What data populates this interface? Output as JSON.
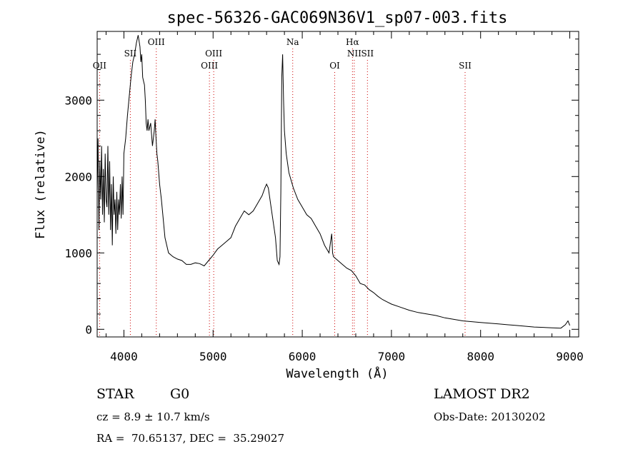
{
  "chart_data": {
    "type": "line",
    "title": "spec-56326-GAC069N36V1_sp07-003.fits",
    "xlabel": "Wavelength (Å)",
    "ylabel": "Flux (relative)",
    "xlim": [
      3700,
      9100
    ],
    "ylim": [
      -100,
      3900
    ],
    "xticks": [
      4000,
      5000,
      6000,
      7000,
      8000,
      9000
    ],
    "yticks": [
      0,
      1000,
      2000,
      3000
    ],
    "series": [
      {
        "x": [
          3700,
          3710,
          3720,
          3730,
          3740,
          3750,
          3760,
          3770,
          3780,
          3790,
          3800,
          3810,
          3820,
          3830,
          3840,
          3850,
          3860,
          3870,
          3880,
          3890,
          3900,
          3910,
          3920,
          3930,
          3940,
          3950,
          3960,
          3970,
          3980,
          3990,
          4000,
          4020,
          4040,
          4060,
          4080,
          4100,
          4120,
          4140,
          4160,
          4180,
          4190,
          4200,
          4210,
          4220,
          4230,
          4240,
          4250,
          4260,
          4270,
          4280,
          4300,
          4320,
          4340,
          4350,
          4360,
          4370,
          4380,
          4400,
          4420,
          4440,
          4460,
          4480,
          4500,
          4550,
          4600,
          4650,
          4700,
          4750,
          4800,
          4850,
          4900,
          4950,
          5000,
          5050,
          5100,
          5150,
          5200,
          5250,
          5300,
          5350,
          5400,
          5450,
          5500,
          5550,
          5580,
          5600,
          5620,
          5650,
          5700,
          5720,
          5740,
          5750,
          5760,
          5770,
          5780,
          5790,
          5800,
          5820,
          5850,
          5900,
          5950,
          6000,
          6050,
          6100,
          6150,
          6200,
          6250,
          6300,
          6330,
          6340,
          6350,
          6400,
          6450,
          6500,
          6550,
          6600,
          6650,
          6700,
          6750,
          6800,
          6850,
          6900,
          6950,
          7000,
          7100,
          7200,
          7300,
          7400,
          7500,
          7600,
          7700,
          7800,
          7900,
          8000,
          8100,
          8200,
          8300,
          8400,
          8500,
          8600,
          8700,
          8800,
          8900,
          8950,
          8980,
          9000
        ],
        "y": [
          1800,
          2500,
          1300,
          2200,
          1700,
          2400,
          1500,
          2100,
          1400,
          2300,
          1700,
          1600,
          2400,
          1500,
          2200,
          1300,
          1900,
          1100,
          2000,
          1500,
          1700,
          1250,
          1800,
          1300,
          1700,
          1500,
          1900,
          1450,
          2000,
          1500,
          2300,
          2500,
          2800,
          3050,
          3300,
          3500,
          3600,
          3750,
          3850,
          3700,
          3500,
          3600,
          3300,
          3250,
          3200,
          3000,
          2700,
          2600,
          2750,
          2600,
          2700,
          2400,
          2600,
          2750,
          2500,
          2300,
          2200,
          1900,
          1700,
          1450,
          1200,
          1100,
          1000,
          950,
          920,
          900,
          850,
          850,
          870,
          860,
          830,
          900,
          970,
          1050,
          1100,
          1150,
          1200,
          1350,
          1450,
          1550,
          1500,
          1550,
          1650,
          1750,
          1850,
          1900,
          1850,
          1600,
          1200,
          900,
          850,
          950,
          1800,
          3300,
          3600,
          3000,
          2600,
          2300,
          2050,
          1850,
          1700,
          1600,
          1500,
          1450,
          1350,
          1250,
          1100,
          1000,
          1250,
          1000,
          950,
          900,
          850,
          800,
          770,
          700,
          600,
          580,
          520,
          480,
          430,
          390,
          360,
          330,
          290,
          250,
          220,
          200,
          180,
          150,
          130,
          110,
          100,
          90,
          80,
          70,
          60,
          50,
          40,
          30,
          25,
          20,
          15,
          60,
          110,
          50
        ]
      }
    ],
    "line_markers": [
      {
        "label": "OII",
        "x": 3727,
        "row": 3
      },
      {
        "label": "SII",
        "x": 4072,
        "row": 2
      },
      {
        "label": "OIII",
        "x": 4363,
        "row": 1
      },
      {
        "label": "OIII",
        "x": 4959,
        "row": 3
      },
      {
        "label": "OIII",
        "x": 5007,
        "row": 2
      },
      {
        "label": "Na",
        "x": 5893,
        "row": 1
      },
      {
        "label": "OI",
        "x": 6364,
        "row": 3
      },
      {
        "label": "Hα",
        "x": 6563,
        "row": 1
      },
      {
        "label": "NII",
        "x": 6583,
        "row": 2
      },
      {
        "label": "SII",
        "x": 6731,
        "row": 2
      },
      {
        "label": "SII",
        "x": 7826,
        "row": 3
      }
    ],
    "grid": false
  },
  "info": {
    "object_class": "STAR",
    "subclass": "G0",
    "survey": "LAMOST DR2",
    "cz": "cz = 8.9 ± 10.7 km/s",
    "obs_date": "Obs-Date: 20130202",
    "coords": "RA =  70.65137, DEC =  35.29027"
  },
  "colors": {
    "spectrum": "#000000",
    "marker": "#cc0000",
    "axis": "#000000"
  }
}
